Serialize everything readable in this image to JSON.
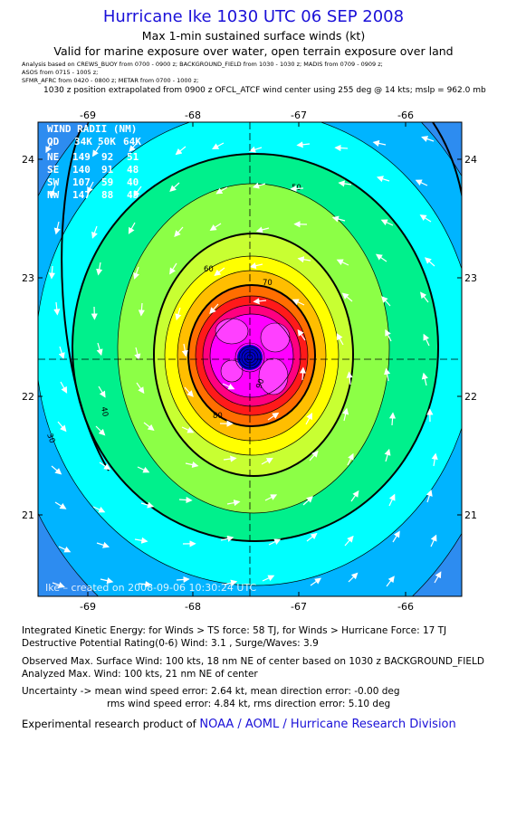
{
  "header": {
    "title": "Hurricane Ike 1030 UTC 06 SEP 2008",
    "subtitle1": "Max 1-min sustained surface winds (kt)",
    "subtitle2": "Valid for marine exposure over water, open terrain exposure over land",
    "analysis_line1": "Analysis based on  CREWS_BUOY from 0700 - 0900 z;  BACKGROUND_FIELD from 1030 - 1030 z;  MADIS from 0709 - 0909 z;",
    "analysis_line2": "ASOS from 0715 - 1005 z;",
    "analysis_line3": "SFMR_AFRC from 0420 - 0800 z;  METAR from 0700 - 1000 z;",
    "position_line": "1030 z position extrapolated from 0900 z OFCL_ATCF wind center using 255 deg @ 14 kts; mslp = 962.0 mb"
  },
  "map": {
    "lon_ticks": [
      "-69",
      "-68",
      "-67",
      "-66"
    ],
    "lat_ticks": [
      "24",
      "23",
      "22",
      "21"
    ],
    "contour_labels": [
      "30",
      "40",
      "50",
      "60",
      "70",
      "80",
      "90"
    ],
    "footer_text": "Ike – created on 2008-09-06 10:30:24 UTC",
    "wind_radii": {
      "title": "WIND RADII (NM)",
      "header": [
        "QD",
        "34K",
        "50K",
        "64K"
      ],
      "rows": [
        [
          "NE",
          "149",
          "92",
          "51"
        ],
        [
          "SE",
          "140",
          "91",
          "48"
        ],
        [
          "SW",
          "107",
          "59",
          "40"
        ],
        [
          "NW",
          "147",
          "88",
          "45"
        ]
      ]
    },
    "colors": {
      "lt30": "#2d8cf0",
      "c30": "#00b4ff",
      "c40": "#00ffff",
      "c50": "#00f08c",
      "c60": "#8cff46",
      "c65": "#c8ff32",
      "c70": "#ffff00",
      "c80": "#ffbe00",
      "c85": "#ff6e00",
      "c90": "#ff1a1a",
      "c95": "#ff0080",
      "c100": "#ff00ff",
      "core": "#0000cc"
    }
  },
  "stats": {
    "ike": "Integrated Kinetic Energy:  for Winds > TS force: 58 TJ,  for Winds > Hurricane Force: 17 TJ",
    "dpr": "Destructive Potential Rating(0-6)   Wind: 3.1 , Surge/Waves: 3.9",
    "obs": "Observed Max. Surface Wind: 100 kts, 18 nm NE of center based on 1030 z BACKGROUND_FIELD",
    "analyzed": "Analyzed Max. Wind: 100 kts, 21 nm NE of center",
    "unc1": "Uncertainty -> mean wind speed error: 2.64 kt,   mean direction error:  -0.00 deg",
    "unc2": "rms wind speed error: 4.84 kt,   rms direction error: 5.10 deg"
  },
  "credit": {
    "prefix": "Experimental research product of",
    "org": "NOAA / AOML / Hurricane Research Division"
  }
}
